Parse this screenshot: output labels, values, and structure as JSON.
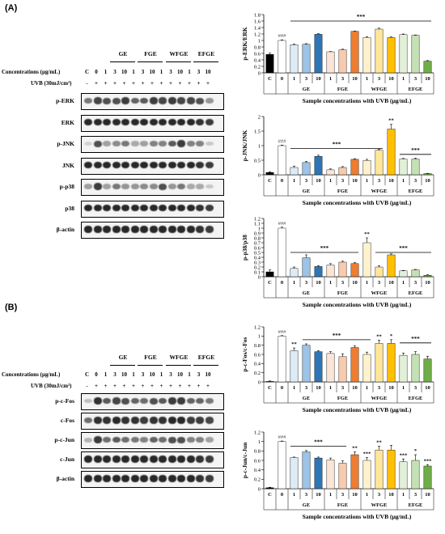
{
  "panels": [
    {
      "label": "(A)",
      "groups": [
        "GE",
        "FGE",
        "WFGE",
        "EFGE"
      ],
      "conc_label": "Concentrations (µg/mL)",
      "uvb_label": "UVB (30mJ/cm²)",
      "lanes": [
        "C",
        "0",
        "1",
        "3",
        "10",
        "1",
        "3",
        "10",
        "1",
        "3",
        "10",
        "1",
        "3",
        "10"
      ],
      "uvb_marks": [
        "-",
        "+",
        "+",
        "+",
        "+",
        "+",
        "+",
        "+",
        "+",
        "+",
        "+",
        "+",
        "+",
        "+"
      ],
      "blots": [
        "p-ERK",
        "ERK",
        "p-JNK",
        "JNK",
        "p-p38",
        "p38",
        "β-actin"
      ]
    },
    {
      "label": "(B)",
      "groups": [
        "GE",
        "FGE",
        "WFGE",
        "EFGE"
      ],
      "conc_label": "Concentrations (µg/mL)",
      "uvb_label": "UVB (30mJ/cm²)",
      "lanes": [
        "C",
        "0",
        "1",
        "3",
        "10",
        "1",
        "3",
        "10",
        "1",
        "3",
        "10",
        "1",
        "3",
        "10"
      ],
      "uvb_marks": [
        "-",
        "+",
        "+",
        "+",
        "+",
        "+",
        "+",
        "+",
        "+",
        "+",
        "+",
        "+",
        "+",
        "+"
      ],
      "blots": [
        "p-c-Fos",
        "c-Fos",
        "p-c-Jun",
        "c-Jun",
        "β-actin"
      ]
    }
  ],
  "chart_data": [
    {
      "type": "bar",
      "ylabel": "p-ERK/ERK",
      "xlabel": "Sample concentrations with UVB (µg/mL)",
      "ylim": [
        0,
        1.8
      ],
      "yticks": [
        "0",
        "0.2",
        "0.4",
        "0.6",
        "0.8",
        "1",
        "1.2",
        "1.4",
        "1.6",
        "1.8"
      ],
      "categories": [
        "C",
        "0",
        "1",
        "3",
        "10",
        "1",
        "3",
        "10",
        "1",
        "3",
        "10",
        "1",
        "3",
        "10"
      ],
      "groups": [
        "GE",
        "FGE",
        "WFGE",
        "EFGE"
      ],
      "values": [
        0.57,
        1.0,
        0.87,
        0.88,
        1.19,
        0.65,
        0.71,
        1.28,
        1.09,
        1.35,
        1.09,
        1.18,
        1.16,
        0.36
      ],
      "errors": [
        0.04,
        0.02,
        0.02,
        0.02,
        0.02,
        0.01,
        0.02,
        0.01,
        0.03,
        0.03,
        0.02,
        0.02,
        0.01,
        0.02
      ],
      "colors": [
        "#000000",
        "#ffffff",
        "#ddebf7",
        "#9dc3e6",
        "#2e75b6",
        "#fbe5d6",
        "#f8cbad",
        "#ed7d31",
        "#fff2cc",
        "#ffe699",
        "#ffc000",
        "#e2f0d9",
        "#c5e0b4",
        "#70ad47"
      ],
      "control_mark": "###",
      "significance": "***",
      "annotations": []
    },
    {
      "type": "bar",
      "ylabel": "p-JNK/JNK",
      "xlabel": "Sample concentrations with UVB (µg/mL)",
      "ylim": [
        0,
        2
      ],
      "yticks": [
        "0",
        "0.5",
        "1",
        "1.5",
        "2"
      ],
      "categories": [
        "C",
        "0",
        "1",
        "3",
        "10",
        "1",
        "3",
        "10",
        "1",
        "3",
        "10",
        "1",
        "3",
        "10"
      ],
      "groups": [
        "GE",
        "FGE",
        "WFGE",
        "EFGE"
      ],
      "values": [
        0.08,
        1.0,
        0.25,
        0.42,
        0.63,
        0.17,
        0.25,
        0.53,
        0.49,
        0.84,
        1.57,
        0.54,
        0.54,
        0.04
      ],
      "errors": [
        0.02,
        0.02,
        0.05,
        0.04,
        0.04,
        0.03,
        0.03,
        0.02,
        0.04,
        0.03,
        0.16,
        0.02,
        0.03,
        0.01
      ],
      "colors": [
        "#000000",
        "#ffffff",
        "#ddebf7",
        "#9dc3e6",
        "#2e75b6",
        "#fbe5d6",
        "#f8cbad",
        "#ed7d31",
        "#fff2cc",
        "#ffe699",
        "#ffc000",
        "#e2f0d9",
        "#c5e0b4",
        "#70ad47"
      ],
      "control_mark": "###",
      "significance": "***",
      "annotations": [
        {
          "index": 10,
          "text": "**"
        }
      ]
    },
    {
      "type": "bar",
      "ylabel": "p-p38/p38",
      "xlabel": "Sample concentrations with UVB (µg/mL)",
      "ylim": [
        0,
        1.2
      ],
      "yticks": [
        "0",
        "0.1",
        "0.2",
        "0.3",
        "0.4",
        "0.5",
        "0.6",
        "0.7",
        "0.8",
        "0.9",
        "1",
        "1.1",
        "1.2"
      ],
      "categories": [
        "C",
        "0",
        "1",
        "3",
        "10",
        "1",
        "3",
        "10",
        "1",
        "3",
        "10",
        "1",
        "3",
        "10"
      ],
      "groups": [
        "GE",
        "FGE",
        "WFGE",
        "EFGE"
      ],
      "values": [
        0.1,
        1.0,
        0.17,
        0.39,
        0.21,
        0.24,
        0.3,
        0.27,
        0.7,
        0.2,
        0.45,
        0.12,
        0.14,
        0.03
      ],
      "errors": [
        0.04,
        0.02,
        0.03,
        0.06,
        0.02,
        0.03,
        0.02,
        0.02,
        0.1,
        0.03,
        0.02,
        0.01,
        0.01,
        0.01
      ],
      "colors": [
        "#000000",
        "#ffffff",
        "#ddebf7",
        "#9dc3e6",
        "#2e75b6",
        "#fbe5d6",
        "#f8cbad",
        "#ed7d31",
        "#fff2cc",
        "#ffe699",
        "#ffc000",
        "#e2f0d9",
        "#c5e0b4",
        "#70ad47"
      ],
      "control_mark": "###",
      "significance": "***",
      "annotations": [
        {
          "index": 8,
          "text": "**"
        }
      ]
    },
    {
      "type": "bar",
      "ylabel": "p-c-Fos/c-Fos",
      "xlabel": "Sample concentrations with UVB (µg/mL)",
      "ylim": [
        0,
        1.2
      ],
      "yticks": [
        "0",
        "0.2",
        "0.4",
        "0.6",
        "0.8",
        "1",
        "1.2"
      ],
      "categories": [
        "C",
        "0",
        "1",
        "3",
        "10",
        "1",
        "3",
        "10",
        "1",
        "3",
        "10",
        "1",
        "3",
        "10"
      ],
      "groups": [
        "GE",
        "FGE",
        "WFGE",
        "EFGE"
      ],
      "values": [
        0.01,
        1.0,
        0.68,
        0.8,
        0.66,
        0.62,
        0.55,
        0.75,
        0.6,
        0.84,
        0.84,
        0.58,
        0.6,
        0.5
      ],
      "errors": [
        0.01,
        0.01,
        0.06,
        0.03,
        0.02,
        0.04,
        0.06,
        0.04,
        0.05,
        0.07,
        0.08,
        0.05,
        0.06,
        0.06
      ],
      "colors": [
        "#000000",
        "#ffffff",
        "#ddebf7",
        "#9dc3e6",
        "#2e75b6",
        "#fbe5d6",
        "#f8cbad",
        "#ed7d31",
        "#fff2cc",
        "#ffe699",
        "#ffc000",
        "#e2f0d9",
        "#c5e0b4",
        "#70ad47"
      ],
      "control_mark": "###",
      "significance": "***",
      "annotations": [
        {
          "index": 2,
          "text": "**"
        },
        {
          "index": 9,
          "text": "**"
        },
        {
          "index": 10,
          "text": "*"
        }
      ]
    },
    {
      "type": "bar",
      "ylabel": "p-c-Jun/c-Jun",
      "xlabel": "Sample concentrations with UVB (µg/mL)",
      "ylim": [
        0,
        1.2
      ],
      "yticks": [
        "0",
        "0.2",
        "0.4",
        "0.6",
        "0.8",
        "1",
        "1.2"
      ],
      "categories": [
        "C",
        "0",
        "1",
        "3",
        "10",
        "1",
        "3",
        "10",
        "1",
        "3",
        "10",
        "1",
        "3",
        "10"
      ],
      "groups": [
        "GE",
        "FGE",
        "WFGE",
        "EFGE"
      ],
      "values": [
        0.02,
        1.0,
        0.66,
        0.78,
        0.65,
        0.61,
        0.54,
        0.72,
        0.6,
        0.82,
        0.82,
        0.57,
        0.6,
        0.48
      ],
      "errors": [
        0.01,
        0.01,
        0.01,
        0.03,
        0.02,
        0.04,
        0.05,
        0.06,
        0.06,
        0.08,
        0.1,
        0.06,
        0.12,
        0.03
      ],
      "colors": [
        "#000000",
        "#ffffff",
        "#ddebf7",
        "#9dc3e6",
        "#2e75b6",
        "#fbe5d6",
        "#f8cbad",
        "#ed7d31",
        "#fff2cc",
        "#ffe699",
        "#ffc000",
        "#e2f0d9",
        "#c5e0b4",
        "#70ad47"
      ],
      "control_mark": "###",
      "significance": "***",
      "annotations": [
        {
          "index": 7,
          "text": "**"
        },
        {
          "index": 8,
          "text": "***"
        },
        {
          "index": 9,
          "text": "**"
        },
        {
          "index": 11,
          "text": "***"
        },
        {
          "index": 12,
          "text": "*"
        },
        {
          "index": 13,
          "text": "***"
        }
      ]
    }
  ]
}
